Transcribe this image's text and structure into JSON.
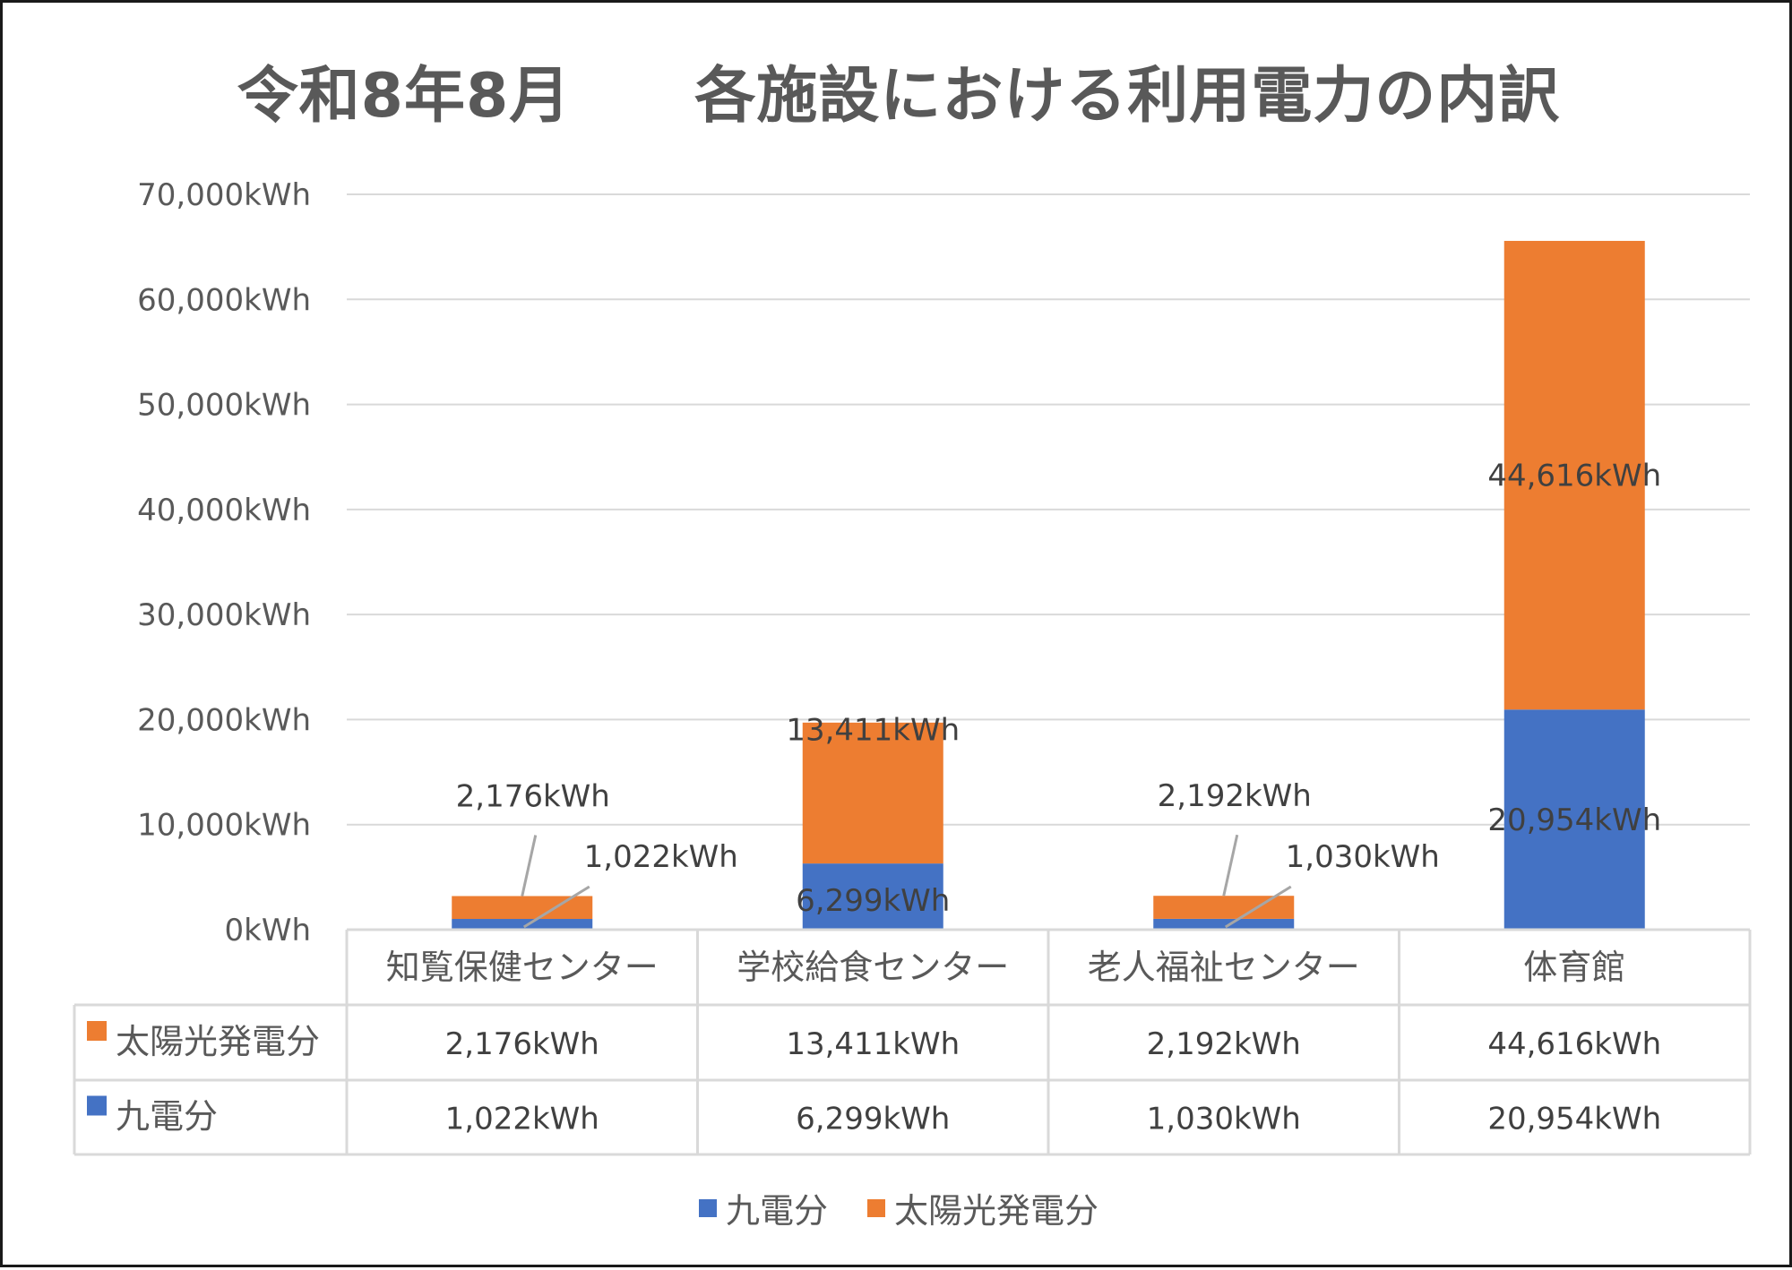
{
  "chart_data": {
    "type": "bar",
    "stacked": true,
    "title": "令和8年8月　　各施設における利用電力の内訳",
    "categories": [
      "知覧保健センター",
      "学校給食センター",
      "老人福祉センター",
      "体育館"
    ],
    "series": [
      {
        "name": "九電分",
        "color": "#4472C4",
        "values": [
          1022,
          6299,
          1030,
          20954
        ],
        "labels": [
          "1,022kWh",
          "6,299kWh",
          "1,030kWh",
          "20,954kWh"
        ]
      },
      {
        "name": "太陽光発電分",
        "color": "#ED7D31",
        "values": [
          2176,
          13411,
          2192,
          44616
        ],
        "labels": [
          "2,176kWh",
          "13,411kWh",
          "2,192kWh",
          "44,616kWh"
        ]
      }
    ],
    "ylim": [
      0,
      70000
    ],
    "ytick_labels": [
      "0kWh",
      "10,000kWh",
      "20,000kWh",
      "30,000kWh",
      "40,000kWh",
      "50,000kWh",
      "60,000kWh",
      "70,000kWh"
    ],
    "grid": true,
    "data_table": true,
    "table_row_order": [
      "太陽光発電分",
      "九電分"
    ],
    "legend_position": "bottom",
    "legend_order": [
      "九電分",
      "太陽光発電分"
    ]
  }
}
